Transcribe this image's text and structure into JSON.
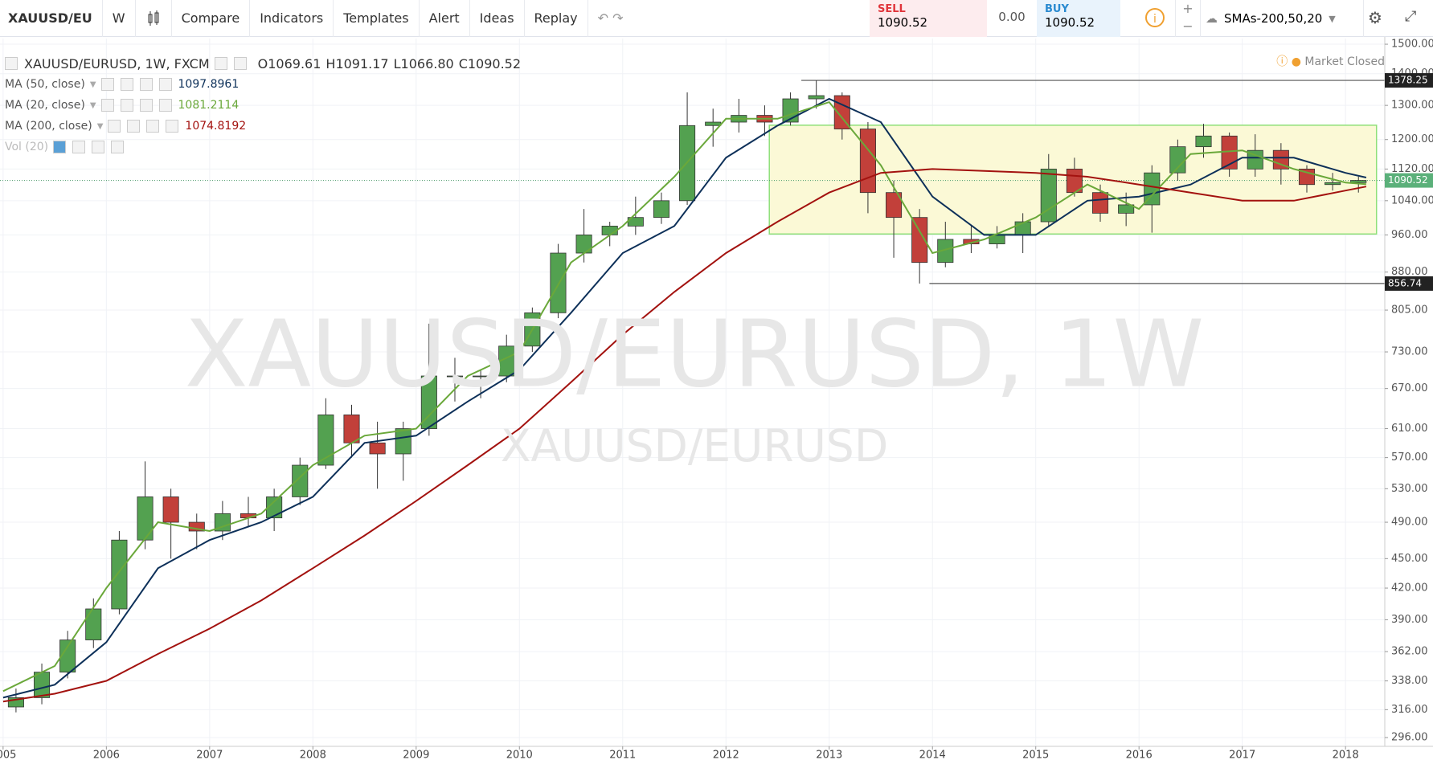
{
  "toolbar": {
    "symbol": "XAUUSD/EU",
    "interval": "W",
    "buttons": [
      "Compare",
      "Indicators",
      "Templates",
      "Alert",
      "Ideas",
      "Replay"
    ],
    "sell_label": "SELL",
    "sell_price": "1090.52",
    "spread": "0.00",
    "buy_label": "BUY",
    "buy_price": "1090.52",
    "template": "SMAs-200,50,20"
  },
  "legend": {
    "symbol": "XAUUSD/EURUSD, 1W, FXCM",
    "ohlc": [
      {
        "label": "O",
        "value": "1069.61"
      },
      {
        "label": "H",
        "value": "1091.17"
      },
      {
        "label": "L",
        "value": "1066.80"
      },
      {
        "label": "C",
        "value": "1090.52"
      }
    ],
    "ma_values": [
      "1097.8961",
      "1081.2114",
      "1074.8192"
    ],
    "volume": "Vol (20)",
    "status": "Market Closed"
  },
  "chart_data": {
    "type": "candlestick",
    "watermark": "XAUUSD/EURUSD, 1W",
    "watermark_sub": "XAUUSD/EURUSD",
    "log_scale": true,
    "grid": true,
    "up_color": "#53a150",
    "down_color": "#c2403a",
    "x": [
      2005.125,
      2005.375,
      2005.625,
      2005.875,
      2006.125,
      2006.375,
      2006.625,
      2006.875,
      2007.125,
      2007.375,
      2007.625,
      2007.875,
      2008.125,
      2008.375,
      2008.625,
      2008.875,
      2009.125,
      2009.375,
      2009.625,
      2009.875,
      2010.125,
      2010.375,
      2010.625,
      2010.875,
      2011.125,
      2011.375,
      2011.625,
      2011.875,
      2012.125,
      2012.375,
      2012.625,
      2012.875,
      2013.125,
      2013.375,
      2013.625,
      2013.875,
      2014.125,
      2014.375,
      2014.625,
      2014.875,
      2015.125,
      2015.375,
      2015.625,
      2015.875,
      2016.125,
      2016.375,
      2016.625,
      2016.875,
      2017.125,
      2017.375,
      2017.625,
      2017.875,
      2018.125
    ],
    "open": [
      318,
      325,
      345,
      372,
      400,
      470,
      520,
      490,
      480,
      500,
      495,
      520,
      560,
      630,
      590,
      575,
      610,
      690,
      690,
      690,
      740,
      800,
      920,
      960,
      980,
      1000,
      1040,
      1240,
      1250,
      1270,
      1250,
      1320,
      1330,
      1230,
      1060,
      1000,
      900,
      950,
      940,
      960,
      990,
      1120,
      1060,
      1010,
      1030,
      1110,
      1180,
      1210,
      1120,
      1170,
      1120,
      1080,
      1085
    ],
    "high": [
      332,
      352,
      380,
      410,
      480,
      565,
      530,
      500,
      515,
      520,
      530,
      570,
      655,
      645,
      620,
      620,
      780,
      720,
      700,
      760,
      810,
      940,
      1020,
      990,
      1050,
      1060,
      1340,
      1290,
      1320,
      1300,
      1340,
      1378.25,
      1340,
      1250,
      1090,
      1020,
      990,
      980,
      980,
      1010,
      1160,
      1150,
      1080,
      1060,
      1130,
      1200,
      1245,
      1220,
      1215,
      1190,
      1130,
      1110,
      1100
    ],
    "low": [
      314,
      320,
      340,
      365,
      395,
      460,
      450,
      460,
      470,
      485,
      480,
      510,
      555,
      570,
      530,
      540,
      600,
      650,
      655,
      680,
      730,
      790,
      900,
      935,
      960,
      985,
      1030,
      1180,
      1220,
      1210,
      1240,
      1290,
      1200,
      1010,
      910,
      856.74,
      890,
      920,
      930,
      920,
      980,
      1050,
      990,
      980,
      965,
      1090,
      1150,
      1100,
      1100,
      1080,
      1060,
      1065,
      1060
    ],
    "close": [
      325,
      345,
      372,
      400,
      470,
      520,
      490,
      480,
      500,
      495,
      520,
      560,
      630,
      590,
      575,
      610,
      690,
      690,
      690,
      740,
      800,
      920,
      960,
      980,
      1000,
      1040,
      1240,
      1250,
      1270,
      1250,
      1320,
      1330,
      1230,
      1060,
      1000,
      900,
      950,
      940,
      960,
      990,
      1120,
      1060,
      1010,
      1030,
      1110,
      1180,
      1210,
      1120,
      1170,
      1120,
      1080,
      1085,
      1090.52
    ],
    "series": [
      {
        "name": "MA (50, close)",
        "color": "#0d3059",
        "x": [
          2005,
          2005.5,
          2006,
          2006.5,
          2007,
          2007.5,
          2008,
          2008.5,
          2009,
          2009.5,
          2010,
          2010.5,
          2011,
          2011.5,
          2012,
          2012.5,
          2013,
          2013.5,
          2014,
          2014.5,
          2015,
          2015.5,
          2016,
          2016.5,
          2017,
          2017.5,
          2018,
          2018.2
        ],
        "values": [
          325,
          335,
          370,
          440,
          470,
          490,
          520,
          590,
          600,
          650,
          700,
          800,
          920,
          980,
          1150,
          1240,
          1320,
          1250,
          1050,
          960,
          960,
          1040,
          1050,
          1080,
          1150,
          1150,
          1110,
          1098
        ]
      },
      {
        "name": "MA (20, close)",
        "color": "#6aa83a",
        "x": [
          2005,
          2005.5,
          2006,
          2006.5,
          2007,
          2007.5,
          2008,
          2008.5,
          2009,
          2009.5,
          2010,
          2010.5,
          2011,
          2011.5,
          2012,
          2012.5,
          2013,
          2013.5,
          2014,
          2014.5,
          2015,
          2015.5,
          2016,
          2016.5,
          2017,
          2017.5,
          2018,
          2018.2
        ],
        "values": [
          330,
          350,
          420,
          490,
          480,
          500,
          560,
          600,
          610,
          690,
          730,
          900,
          980,
          1100,
          1260,
          1260,
          1310,
          1130,
          920,
          950,
          1000,
          1080,
          1020,
          1160,
          1170,
          1120,
          1085,
          1081
        ]
      },
      {
        "name": "MA (200, close)",
        "color": "#a3120f",
        "x": [
          2005,
          2005.5,
          2006,
          2006.5,
          2007,
          2007.5,
          2008,
          2008.5,
          2009,
          2009.5,
          2010,
          2010.5,
          2011,
          2011.5,
          2012,
          2012.5,
          2013,
          2013.5,
          2014,
          2014.5,
          2015,
          2015.5,
          2016,
          2016.5,
          2017,
          2017.5,
          2018,
          2018.2
        ],
        "values": [
          322,
          328,
          338,
          360,
          382,
          408,
          440,
          475,
          515,
          560,
          610,
          680,
          760,
          840,
          920,
          990,
          1060,
          1110,
          1120,
          1115,
          1110,
          1100,
          1080,
          1060,
          1040,
          1040,
          1065,
          1075
        ]
      }
    ],
    "levels": [
      {
        "value": 1378.25,
        "from": 2012.73
      },
      {
        "value": 856.74,
        "from": 2013.97
      }
    ],
    "last_price": 1090.52,
    "zone": {
      "x": [
        2012.42,
        2018.3
      ],
      "y": [
        962,
        1241
      ]
    },
    "xlim": [
      2004.97,
      2018.38
    ],
    "xticks": [
      2005,
      2006,
      2007,
      2008,
      2009,
      2010,
      2011,
      2012,
      2013,
      2014,
      2015,
      2016,
      2017,
      2018
    ],
    "ylim": [
      290,
      1520
    ],
    "yticks": [
      {
        "value": 296,
        "label": "296.00"
      },
      {
        "value": 316,
        "label": "316.00"
      },
      {
        "value": 338,
        "label": "338.00"
      },
      {
        "value": 362,
        "label": "362.00"
      },
      {
        "value": 390,
        "label": "390.00"
      },
      {
        "value": 420,
        "label": "420.00"
      },
      {
        "value": 450,
        "label": "450.00"
      },
      {
        "value": 490,
        "label": "490.00"
      },
      {
        "value": 530,
        "label": "530.00"
      },
      {
        "value": 570,
        "label": "570.00"
      },
      {
        "value": 610,
        "label": "610.00"
      },
      {
        "value": 670,
        "label": "670.00"
      },
      {
        "value": 730,
        "label": "730.00"
      },
      {
        "value": 805,
        "label": "805.00"
      },
      {
        "value": 880,
        "label": "880.00"
      },
      {
        "value": 960,
        "label": "960.00"
      },
      {
        "value": 1040,
        "label": "1040.00"
      },
      {
        "value": 1120,
        "label": "1120.00"
      },
      {
        "value": 1200,
        "label": "1200.00"
      },
      {
        "value": 1300,
        "label": "1300.00"
      },
      {
        "value": 1400,
        "label": "1400.00"
      },
      {
        "value": 1500,
        "label": "1500.00"
      }
    ]
  }
}
